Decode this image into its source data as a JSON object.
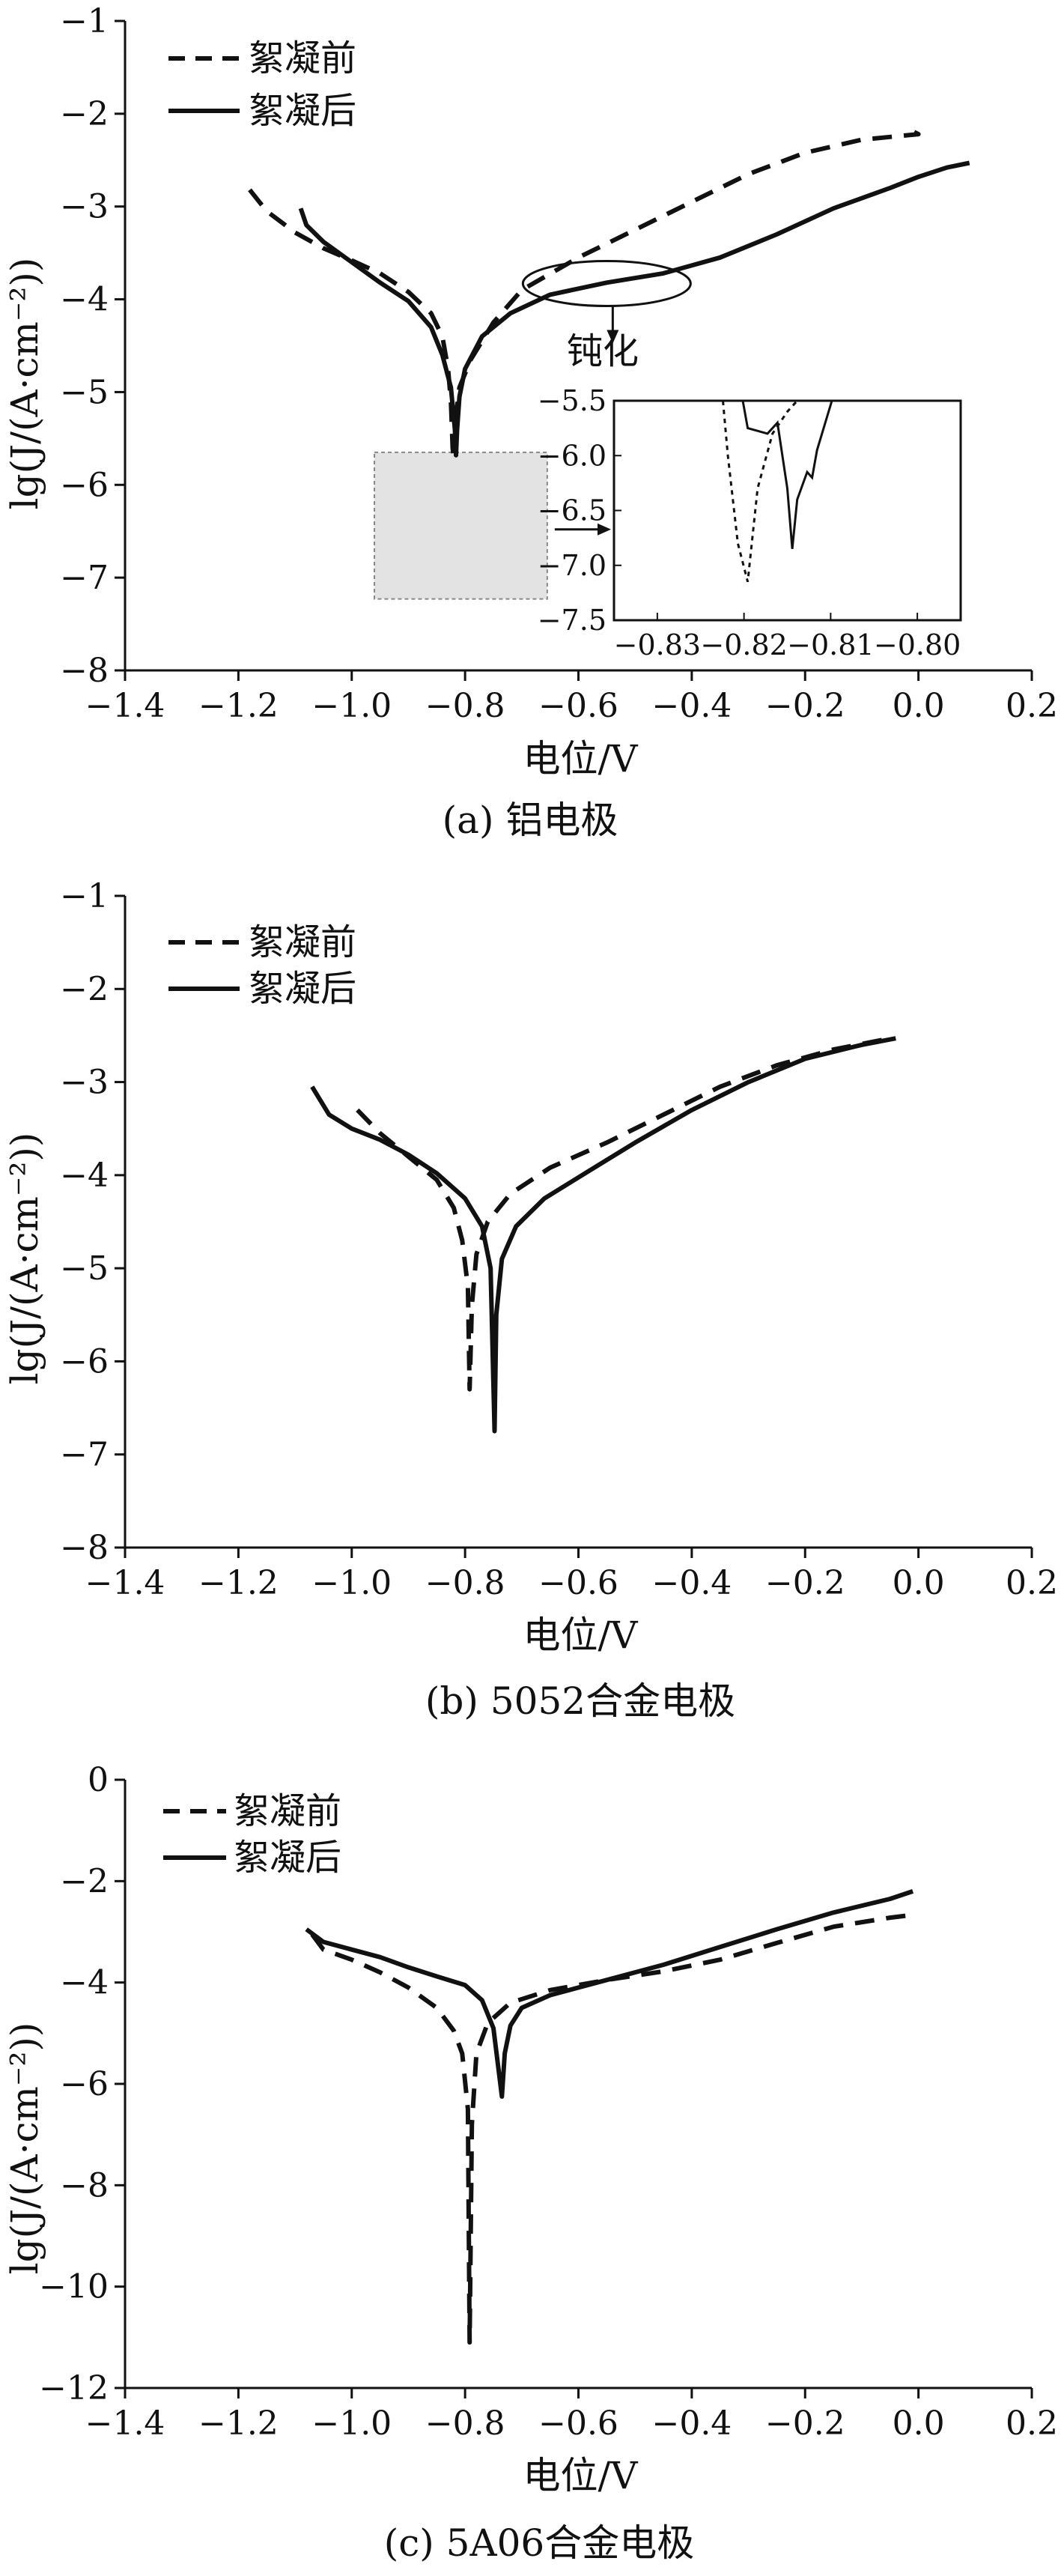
{
  "colors": {
    "line": "#111111",
    "inset_fill": "#e3e3e3",
    "background": "#ffffff"
  },
  "chart_data": [
    {
      "type": "line",
      "caption": "(a) 铝电极",
      "xlabel": "电位/V",
      "ylabel": "lg(J/(A·cm⁻²))",
      "xlim": [
        -1.4,
        0.2
      ],
      "ylim": [
        -8,
        -1
      ],
      "xticks": [
        "−1.4",
        "−1.2",
        "−1.0",
        "−0.8",
        "−0.6",
        "−0.4",
        "−0.2",
        "0.0",
        "0.2"
      ],
      "yticks": [
        "−1",
        "−2",
        "−3",
        "−4",
        "−5",
        "−6",
        "−7",
        "−8"
      ],
      "legend": {
        "position": "top-left",
        "entries": [
          "絮凝前",
          "絮凝后"
        ]
      },
      "series": [
        {
          "name": "絮凝前",
          "style": "dashed",
          "points": [
            [
              -1.18,
              -2.82
            ],
            [
              -1.15,
              -3.05
            ],
            [
              -1.1,
              -3.28
            ],
            [
              -1.05,
              -3.45
            ],
            [
              -1.0,
              -3.58
            ],
            [
              -0.95,
              -3.72
            ],
            [
              -0.9,
              -3.92
            ],
            [
              -0.86,
              -4.15
            ],
            [
              -0.84,
              -4.4
            ],
            [
              -0.83,
              -4.75
            ],
            [
              -0.825,
              -5.1
            ],
            [
              -0.822,
              -5.6
            ],
            [
              -0.82,
              -5.72
            ],
            [
              -0.818,
              -5.5
            ],
            [
              -0.815,
              -5.2
            ],
            [
              -0.81,
              -4.95
            ],
            [
              -0.79,
              -4.65
            ],
            [
              -0.75,
              -4.25
            ],
            [
              -0.7,
              -3.9
            ],
            [
              -0.6,
              -3.55
            ],
            [
              -0.5,
              -3.25
            ],
            [
              -0.4,
              -2.95
            ],
            [
              -0.3,
              -2.65
            ],
            [
              -0.2,
              -2.42
            ],
            [
              -0.1,
              -2.28
            ],
            [
              0.0,
              -2.22
            ],
            [
              -0.01,
              -2.19
            ]
          ]
        },
        {
          "name": "絮凝后",
          "style": "solid",
          "points": [
            [
              -1.09,
              -3.02
            ],
            [
              -1.08,
              -3.2
            ],
            [
              -1.05,
              -3.38
            ],
            [
              -1.0,
              -3.6
            ],
            [
              -0.95,
              -3.82
            ],
            [
              -0.9,
              -4.02
            ],
            [
              -0.86,
              -4.3
            ],
            [
              -0.84,
              -4.6
            ],
            [
              -0.825,
              -4.95
            ],
            [
              -0.818,
              -5.4
            ],
            [
              -0.816,
              -5.68
            ],
            [
              -0.814,
              -5.4
            ],
            [
              -0.81,
              -5.05
            ],
            [
              -0.8,
              -4.75
            ],
            [
              -0.77,
              -4.4
            ],
            [
              -0.72,
              -4.15
            ],
            [
              -0.65,
              -3.95
            ],
            [
              -0.55,
              -3.82
            ],
            [
              -0.45,
              -3.72
            ],
            [
              -0.35,
              -3.55
            ],
            [
              -0.25,
              -3.3
            ],
            [
              -0.15,
              -3.02
            ],
            [
              -0.05,
              -2.8
            ],
            [
              0.0,
              -2.68
            ],
            [
              0.05,
              -2.58
            ],
            [
              0.09,
              -2.53
            ]
          ]
        }
      ],
      "annotations": {
        "passivation_label": "钝化",
        "ellipse_center": [
          -0.55,
          -3.83
        ],
        "shaded_region": {
          "x": [
            -0.96,
            -0.655
          ],
          "y": [
            -7.23,
            -5.65
          ]
        }
      },
      "inset": {
        "xlim": [
          -0.835,
          -0.8
        ],
        "ylim": [
          -7.5,
          -5.5
        ],
        "xticks": [
          "−0.83",
          "−0.82",
          "−0.81",
          "−0.80"
        ],
        "yticks": [
          "−5.5",
          "−6.0",
          "−6.5",
          "−7.0",
          "−7.5"
        ],
        "series": [
          {
            "name": "絮凝前",
            "style": "dotted",
            "points": [
              [
                -0.824,
                -5.5
              ],
              [
                -0.8235,
                -6.0
              ],
              [
                -0.8225,
                -6.8
              ],
              [
                -0.8215,
                -7.15
              ],
              [
                -0.8205,
                -6.3
              ],
              [
                -0.819,
                -5.8
              ],
              [
                -0.8175,
                -5.6
              ],
              [
                -0.8165,
                -5.5
              ]
            ]
          },
          {
            "name": "絮凝后",
            "style": "solid",
            "points": [
              [
                -0.822,
                -5.5
              ],
              [
                -0.8215,
                -5.75
              ],
              [
                -0.8195,
                -5.8
              ],
              [
                -0.8185,
                -5.7
              ],
              [
                -0.8175,
                -6.3
              ],
              [
                -0.817,
                -6.85
              ],
              [
                -0.8165,
                -6.4
              ],
              [
                -0.8155,
                -6.15
              ],
              [
                -0.815,
                -6.2
              ],
              [
                -0.8145,
                -5.95
              ],
              [
                -0.813,
                -5.5
              ]
            ]
          }
        ]
      }
    },
    {
      "type": "line",
      "caption": "(b) 5052合金电极",
      "xlabel": "电位/V",
      "ylabel": "lg(J/(A·cm⁻²))",
      "xlim": [
        -1.4,
        0.2
      ],
      "ylim": [
        -8,
        -1
      ],
      "xticks": [
        "−1.4",
        "−1.2",
        "−1.0",
        "−0.8",
        "−0.6",
        "−0.4",
        "−0.2",
        "0.0",
        "0.2"
      ],
      "yticks": [
        "−1",
        "−2",
        "−3",
        "−4",
        "−5",
        "−6",
        "−7",
        "−8"
      ],
      "legend": {
        "position": "top-left",
        "entries": [
          "絮凝前",
          "絮凝后"
        ]
      },
      "series": [
        {
          "name": "絮凝前",
          "style": "dashed",
          "points": [
            [
              -0.99,
              -3.3
            ],
            [
              -0.95,
              -3.55
            ],
            [
              -0.9,
              -3.8
            ],
            [
              -0.85,
              -4.05
            ],
            [
              -0.82,
              -4.35
            ],
            [
              -0.805,
              -4.7
            ],
            [
              -0.795,
              -5.2
            ],
            [
              -0.792,
              -6.3
            ],
            [
              -0.788,
              -5.4
            ],
            [
              -0.78,
              -4.85
            ],
            [
              -0.76,
              -4.5
            ],
            [
              -0.72,
              -4.2
            ],
            [
              -0.65,
              -3.92
            ],
            [
              -0.55,
              -3.65
            ],
            [
              -0.45,
              -3.35
            ],
            [
              -0.35,
              -3.05
            ],
            [
              -0.25,
              -2.82
            ],
            [
              -0.15,
              -2.65
            ],
            [
              -0.05,
              -2.53
            ]
          ]
        },
        {
          "name": "絮凝后",
          "style": "solid",
          "points": [
            [
              -1.07,
              -3.05
            ],
            [
              -1.04,
              -3.35
            ],
            [
              -1.0,
              -3.5
            ],
            [
              -0.95,
              -3.62
            ],
            [
              -0.9,
              -3.78
            ],
            [
              -0.85,
              -3.98
            ],
            [
              -0.8,
              -4.25
            ],
            [
              -0.77,
              -4.55
            ],
            [
              -0.755,
              -5.0
            ],
            [
              -0.748,
              -6.75
            ],
            [
              -0.745,
              -5.5
            ],
            [
              -0.735,
              -4.9
            ],
            [
              -0.71,
              -4.55
            ],
            [
              -0.66,
              -4.25
            ],
            [
              -0.58,
              -3.95
            ],
            [
              -0.5,
              -3.65
            ],
            [
              -0.4,
              -3.3
            ],
            [
              -0.3,
              -3.0
            ],
            [
              -0.2,
              -2.75
            ],
            [
              -0.1,
              -2.6
            ],
            [
              -0.04,
              -2.53
            ]
          ]
        }
      ]
    },
    {
      "type": "line",
      "caption": "(c) 5A06合金电极",
      "xlabel": "电位/V",
      "ylabel": "lg(J/(A·cm⁻²))",
      "xlim": [
        -1.4,
        0.2
      ],
      "ylim": [
        -12,
        0
      ],
      "xticks": [
        "−1.4",
        "−1.2",
        "−1.0",
        "−0.8",
        "−0.6",
        "−0.4",
        "−0.2",
        "0.0",
        "0.2"
      ],
      "yticks": [
        "0",
        "−2",
        "−4",
        "−6",
        "−8",
        "−10",
        "−12"
      ],
      "legend": {
        "position": "top-left",
        "entries": [
          "絮凝前",
          "絮凝后"
        ]
      },
      "series": [
        {
          "name": "絮凝前",
          "style": "dashed",
          "points": [
            [
              -1.07,
              -3.05
            ],
            [
              -1.05,
              -3.35
            ],
            [
              -1.0,
              -3.55
            ],
            [
              -0.95,
              -3.8
            ],
            [
              -0.9,
              -4.1
            ],
            [
              -0.85,
              -4.5
            ],
            [
              -0.82,
              -4.95
            ],
            [
              -0.805,
              -5.4
            ],
            [
              -0.795,
              -6.5
            ],
            [
              -0.792,
              -11.1
            ],
            [
              -0.788,
              -6.8
            ],
            [
              -0.78,
              -5.4
            ],
            [
              -0.76,
              -4.8
            ],
            [
              -0.72,
              -4.4
            ],
            [
              -0.65,
              -4.15
            ],
            [
              -0.55,
              -3.95
            ],
            [
              -0.45,
              -3.78
            ],
            [
              -0.35,
              -3.55
            ],
            [
              -0.25,
              -3.22
            ],
            [
              -0.15,
              -2.9
            ],
            [
              -0.05,
              -2.72
            ],
            [
              -0.02,
              -2.68
            ]
          ]
        },
        {
          "name": "絮凝后",
          "style": "solid",
          "points": [
            [
              -1.08,
              -2.95
            ],
            [
              -1.05,
              -3.2
            ],
            [
              -1.0,
              -3.35
            ],
            [
              -0.95,
              -3.5
            ],
            [
              -0.9,
              -3.7
            ],
            [
              -0.85,
              -3.88
            ],
            [
              -0.8,
              -4.05
            ],
            [
              -0.77,
              -4.35
            ],
            [
              -0.75,
              -4.9
            ],
            [
              -0.735,
              -6.25
            ],
            [
              -0.73,
              -5.4
            ],
            [
              -0.72,
              -4.85
            ],
            [
              -0.7,
              -4.5
            ],
            [
              -0.65,
              -4.25
            ],
            [
              -0.55,
              -3.95
            ],
            [
              -0.45,
              -3.65
            ],
            [
              -0.35,
              -3.3
            ],
            [
              -0.25,
              -2.95
            ],
            [
              -0.15,
              -2.62
            ],
            [
              -0.05,
              -2.35
            ],
            [
              -0.01,
              -2.2
            ]
          ]
        }
      ]
    }
  ]
}
